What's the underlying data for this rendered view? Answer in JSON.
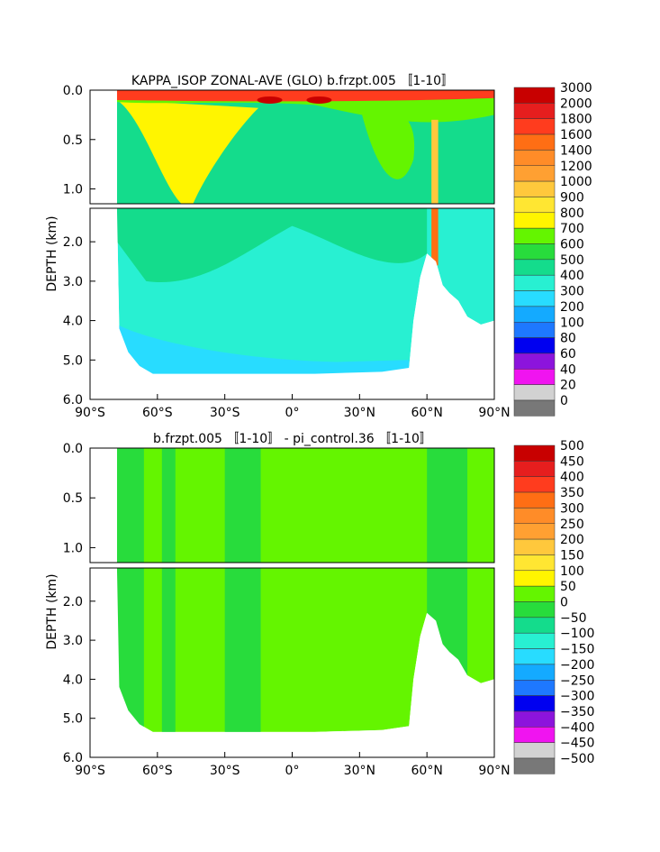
{
  "chart_data": [
    {
      "type": "heatmap",
      "title": "KAPPA_ISOP ZONAL-AVE (GLO) b.frzpt.005 〚1-10〛",
      "ylabel": "DEPTH (km)",
      "x_ticks": [
        "90°S",
        "60°S",
        "30°S",
        "0°",
        "30°N",
        "60°N",
        "90°N"
      ],
      "xlim": [
        -90,
        90
      ],
      "y_ticks_upper": [
        "0.0",
        "0.5",
        "1.0"
      ],
      "y_ticks_lower": [
        "2.0",
        "3.0",
        "4.0",
        "5.0",
        "6.0"
      ],
      "ylim_upper": [
        0,
        1.15
      ],
      "ylim_lower": [
        1.15,
        6.0
      ],
      "colorbar_labels": [
        "3000",
        "2000",
        "1800",
        "1600",
        "1400",
        "1200",
        "1000",
        "900",
        "800",
        "700",
        "600",
        "500",
        "400",
        "300",
        "200",
        "100",
        "80",
        "60",
        "40",
        "20",
        "0"
      ],
      "colorbar_colors": [
        "#c80000",
        "#e61e1e",
        "#ff3c1e",
        "#ff6e14",
        "#ff8c28",
        "#ffa032",
        "#ffc83c",
        "#ffe632",
        "#fff500",
        "#64f500",
        "#28dc3c",
        "#14dc8c",
        "#28f0d2",
        "#28dcff",
        "#14aaff",
        "#1e78ff",
        "#0000f0",
        "#8c14dc",
        "#f014f0",
        "#d2d2d2",
        "#787878"
      ],
      "features": {
        "surface_band_value": 1600,
        "thermocline_value": 700,
        "interior_value": 400,
        "deep_value": 300,
        "abyssal_value": 200,
        "arctic_plume_value": 1400
      }
    },
    {
      "type": "heatmap",
      "title": "b.frzpt.005 〚1-10〛 - pi_control.36 〚1-10〛",
      "ylabel": "DEPTH (km)",
      "x_ticks": [
        "90°S",
        "60°S",
        "30°S",
        "0°",
        "30°N",
        "60°N",
        "90°N"
      ],
      "xlim": [
        -90,
        90
      ],
      "y_ticks_upper": [
        "0.0",
        "0.5",
        "1.0"
      ],
      "y_ticks_lower": [
        "2.0",
        "3.0",
        "4.0",
        "5.0",
        "6.0"
      ],
      "ylim_upper": [
        0,
        1.15
      ],
      "ylim_lower": [
        1.15,
        6.0
      ],
      "colorbar_labels": [
        "500",
        "450",
        "400",
        "350",
        "300",
        "250",
        "200",
        "150",
        "100",
        "50",
        "0",
        "−50",
        "−100",
        "−150",
        "−200",
        "−250",
        "−300",
        "−350",
        "−400",
        "−450",
        "−500"
      ],
      "colorbar_colors": [
        "#c80000",
        "#e61e1e",
        "#ff3c1e",
        "#ff6e14",
        "#ff8c28",
        "#ffa032",
        "#ffc83c",
        "#ffe632",
        "#fff500",
        "#64f500",
        "#28dc3c",
        "#14dc8c",
        "#28f0d2",
        "#28dcff",
        "#14aaff",
        "#1e78ff",
        "#0000f0",
        "#8c14dc",
        "#f014f0",
        "#d2d2d2",
        "#787878"
      ],
      "features": {
        "background_value": 0,
        "negative_value": -50
      }
    }
  ]
}
